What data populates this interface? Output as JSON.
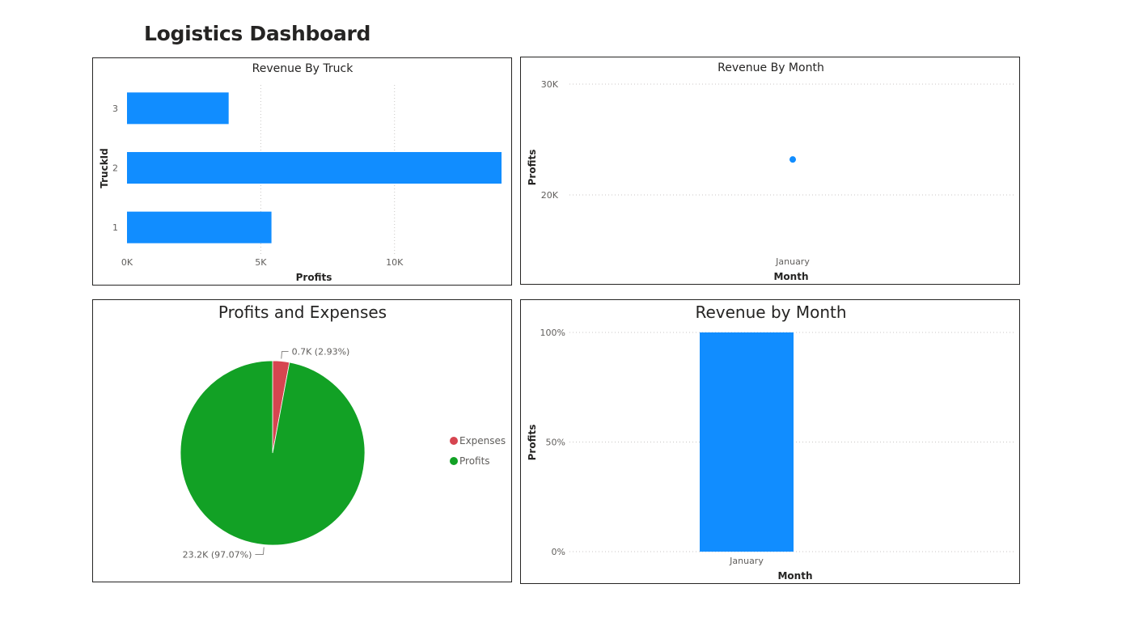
{
  "dashboard": {
    "title": "Logistics Dashboard"
  },
  "colors": {
    "blue": "#118DFF",
    "green": "#12A125",
    "red": "#D64550"
  },
  "chart_data": [
    {
      "id": "revenue-by-truck",
      "type": "bar",
      "orientation": "horizontal",
      "title": "Revenue By Truck",
      "xlabel": "Profits",
      "ylabel": "TruckId",
      "categories": [
        "3",
        "2",
        "1"
      ],
      "values": [
        3800,
        14000,
        5400
      ],
      "xlim": [
        0,
        14000
      ],
      "xticks": [
        0,
        5000,
        10000
      ],
      "xtick_labels": [
        "0K",
        "5K",
        "10K"
      ],
      "grid": true
    },
    {
      "id": "revenue-by-month-scatter",
      "type": "scatter",
      "title": "Revenue By Month",
      "xlabel": "Month",
      "ylabel": "Profits",
      "categories": [
        "January"
      ],
      "values": [
        23200
      ],
      "ylim": [
        18000,
        30000
      ],
      "yticks": [
        20000,
        30000
      ],
      "ytick_labels": [
        "20K",
        "30K"
      ],
      "grid": true
    },
    {
      "id": "profits-and-expenses",
      "type": "pie",
      "title": "Profits and Expenses",
      "slices": [
        {
          "name": "Expenses",
          "value": 0.7,
          "percent": 2.93,
          "label": "0.7K (2.93%)"
        },
        {
          "name": "Profits",
          "value": 23.2,
          "percent": 97.07,
          "label": "23.2K (97.07%)"
        }
      ],
      "legend": [
        "Expenses",
        "Profits"
      ],
      "legend_position": "right"
    },
    {
      "id": "revenue-by-month-column",
      "type": "bar",
      "orientation": "vertical",
      "title": "Revenue by Month",
      "xlabel": "Month",
      "ylabel": "Profits",
      "categories": [
        "January"
      ],
      "values": [
        100
      ],
      "ylim": [
        0,
        100
      ],
      "yticks": [
        0,
        50,
        100
      ],
      "ytick_labels": [
        "0%",
        "50%",
        "100%"
      ],
      "grid": true
    }
  ]
}
